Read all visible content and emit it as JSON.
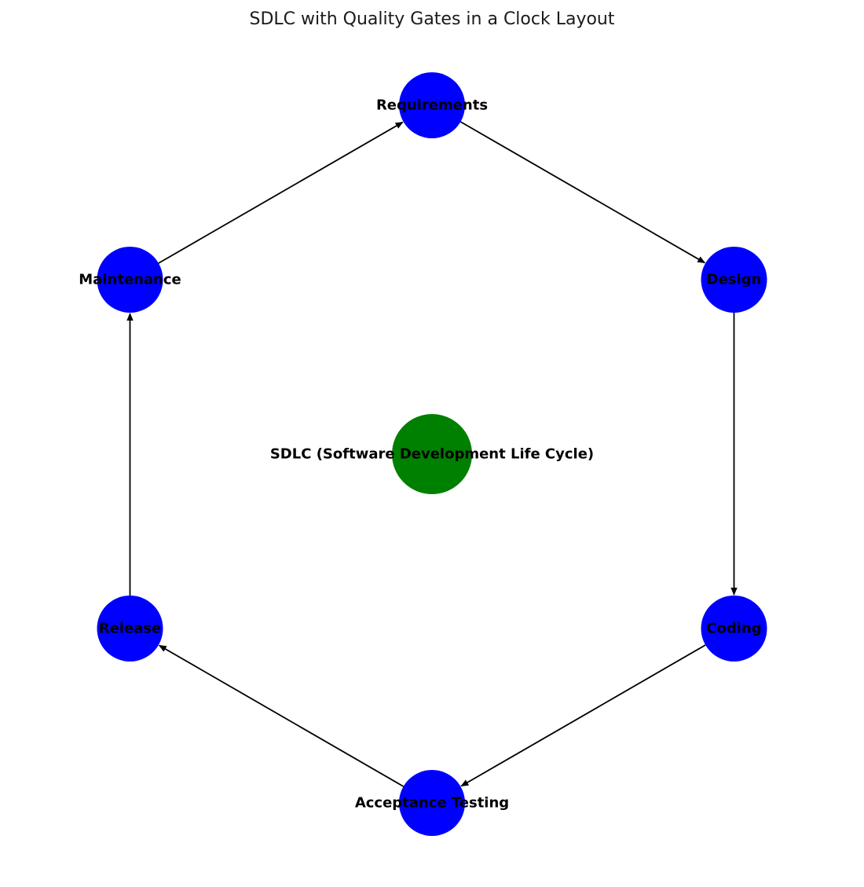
{
  "title": "SDLC with Quality Gates in a Clock Layout",
  "colors": {
    "center_node": "#008000",
    "phase_node": "#0000ff",
    "edge": "#000000",
    "label": "#000000"
  },
  "center": {
    "id": "sdlc",
    "label": "SDLC (Software Development Life Cycle)"
  },
  "nodes": [
    {
      "id": "requirements",
      "label": "Requirements"
    },
    {
      "id": "design",
      "label": "Design"
    },
    {
      "id": "coding",
      "label": "Coding"
    },
    {
      "id": "acceptance-testing",
      "label": "Acceptance Testing"
    },
    {
      "id": "release",
      "label": "Release"
    },
    {
      "id": "maintenance",
      "label": "Maintenance"
    }
  ],
  "edges": [
    {
      "from": "requirements",
      "to": "design"
    },
    {
      "from": "design",
      "to": "coding"
    },
    {
      "from": "coding",
      "to": "acceptance-testing"
    },
    {
      "from": "acceptance-testing",
      "to": "release"
    },
    {
      "from": "release",
      "to": "maintenance"
    },
    {
      "from": "maintenance",
      "to": "requirements"
    }
  ]
}
